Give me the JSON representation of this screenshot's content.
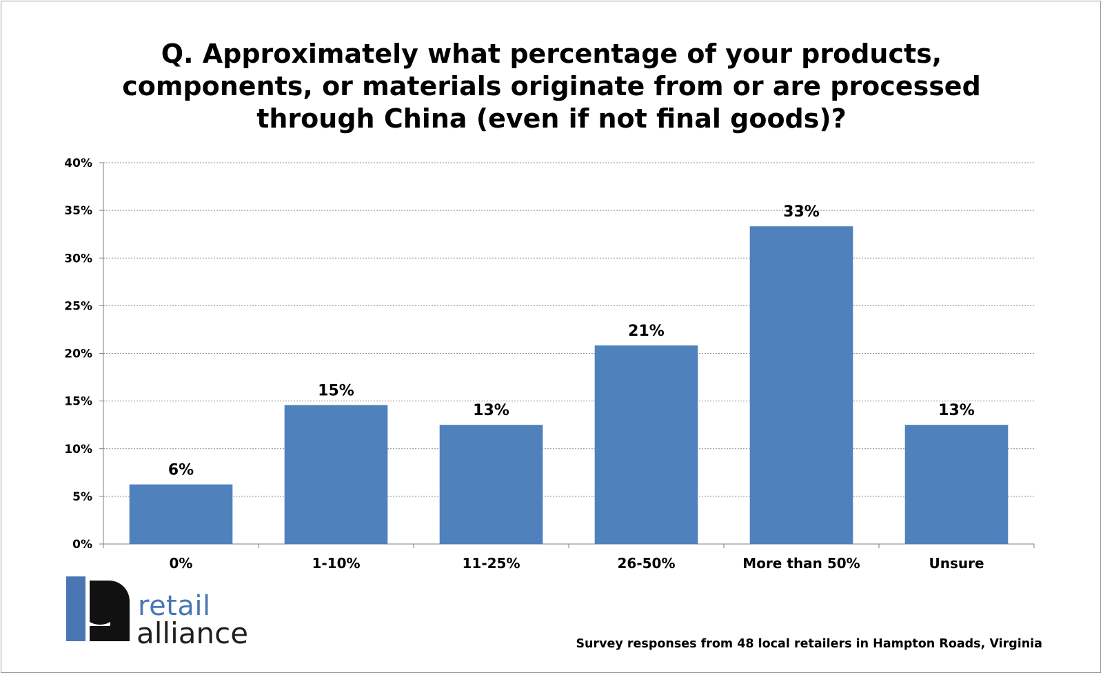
{
  "chart_data": {
    "type": "bar",
    "title_lines": [
      "Q. Approximately what percentage of your products,",
      "components, or materials originate from or are processed",
      "through China (even if not final goods)?"
    ],
    "categories": [
      "0%",
      "1-10%",
      "11-25%",
      "26-50%",
      "More than 50%",
      "Unsure"
    ],
    "values": [
      6.25,
      14.58,
      12.5,
      20.83,
      33.33,
      12.5
    ],
    "data_labels": [
      "6%",
      "15%",
      "13%",
      "21%",
      "33%",
      "13%"
    ],
    "xlabel": "",
    "ylabel": "",
    "ylim": [
      0,
      40
    ],
    "yticks": [
      0,
      5,
      10,
      15,
      20,
      25,
      30,
      35,
      40
    ],
    "ytick_labels": [
      "0%",
      "5%",
      "10%",
      "15%",
      "20%",
      "25%",
      "30%",
      "35%",
      "40%"
    ],
    "grid": true,
    "grid_style": "dotted",
    "legend": "none",
    "bar_color": "#4f81bd"
  },
  "logo": {
    "line1": "retail",
    "line2": "alliance",
    "accent_color": "#4a77b4"
  },
  "source_note": "Survey responses from 48 local retailers in Hampton Roads, Virginia"
}
